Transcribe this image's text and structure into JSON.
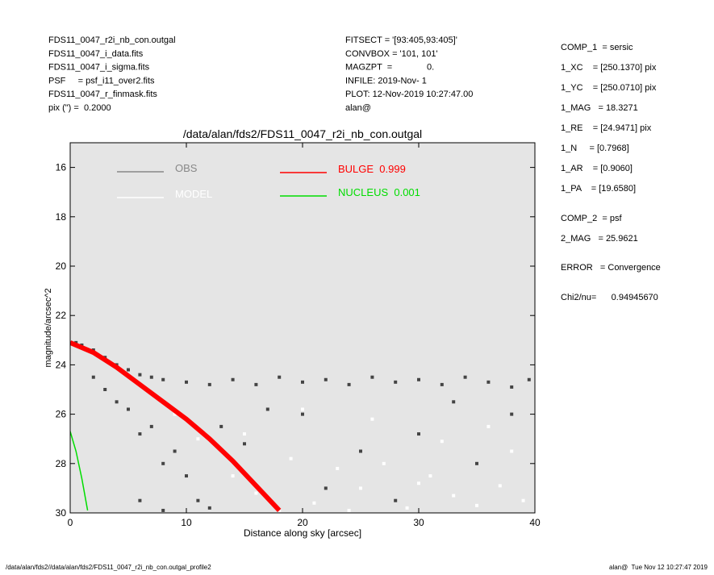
{
  "header_left": [
    "FDS11_0047_r2i_nb_con.outgal",
    "FDS11_0047_i_data.fits",
    "FDS11_0047_i_sigma.fits",
    "PSF     = psf_i11_over2.fits",
    "FDS11_0047_r_finmask.fits",
    "pix (\") =  0.2000"
  ],
  "header_middle": [
    "FITSECT = '[93:405,93:405]'",
    "CONVBOX = '101, 101'",
    "MAGZPT  =              0.",
    "INFILE: 2019-Nov- 1",
    "PLOT: 12-Nov-2019 10:27:47.00",
    "alan@"
  ],
  "fit_panel": [
    "COMP_1  = sersic",
    "1_XC    = [250.1370] pix",
    "1_YC    = [250.0710] pix",
    "1_MAG   = 18.3271",
    "1_RE    = [24.9471] pix",
    "1_N     = [0.7968]",
    "1_AR    = [0.9060]",
    "1_PA    = [19.6580]",
    "COMP_2  = psf",
    "2_MAG   = 25.9621",
    "ERROR   = Convergence",
    "Chi2/nu=      0.94945670"
  ],
  "footer_left": "/data/alan/fds2//data/alan/fds2/FDS11_0047_r2i_nb_con.outgal_profile2",
  "footer_right": "alan@  Tue Nov 12 10:27:47 2019",
  "chart_data": {
    "type": "scatter",
    "title": "/data/alan/fds2/FDS11_0047_r2i_nb_con.outgal",
    "x_label": "Distance along sky [arcsec]",
    "y_label": "magnitude/arcsec^2",
    "xlim": [
      0,
      40
    ],
    "xticks": [
      0,
      10,
      20,
      30,
      40
    ],
    "ylim": [
      30,
      15
    ],
    "yticks": [
      16,
      18,
      20,
      22,
      24,
      26,
      28,
      30
    ],
    "background": "#e5e5e5",
    "series": [
      {
        "name": "OBS",
        "color": "#444444",
        "legend_color": "#888888",
        "style": "points",
        "x": [
          0.5,
          1,
          2,
          3,
          4,
          5,
          6,
          7,
          8,
          10,
          12,
          14,
          16,
          18,
          20,
          22,
          24,
          26,
          28,
          30,
          32,
          34,
          36,
          38,
          39.5,
          3,
          5,
          7,
          9,
          10,
          11,
          2,
          4,
          6,
          8,
          13,
          15,
          20,
          25,
          30,
          35,
          38,
          12,
          6,
          8,
          22,
          33,
          28,
          17
        ],
        "values": [
          23.1,
          23.2,
          23.4,
          23.7,
          24.0,
          24.2,
          24.4,
          24.5,
          24.6,
          24.7,
          24.8,
          24.6,
          24.8,
          24.5,
          24.7,
          24.6,
          24.8,
          24.5,
          24.7,
          24.6,
          24.8,
          24.5,
          24.7,
          24.9,
          24.6,
          25.0,
          25.8,
          26.5,
          27.5,
          28.5,
          29.5,
          24.5,
          25.5,
          26.8,
          28.0,
          26.5,
          27.2,
          26.0,
          27.5,
          26.8,
          28.0,
          26.0,
          29.8,
          29.5,
          29.9,
          29.0,
          25.5,
          29.5,
          25.8
        ]
      },
      {
        "name": "MODEL",
        "color": "#ffffff",
        "legend_color": "#ffffff",
        "style": "points",
        "x": [
          9,
          11,
          14,
          16,
          19,
          21,
          23,
          25,
          27,
          29,
          31,
          33,
          35,
          37,
          39,
          15,
          20,
          26,
          32,
          36,
          24,
          30,
          38,
          18
        ],
        "values": [
          26.0,
          27.0,
          28.5,
          29.2,
          27.8,
          29.6,
          28.2,
          29.0,
          28.0,
          29.8,
          28.5,
          29.3,
          29.7,
          28.9,
          29.5,
          26.8,
          25.8,
          26.2,
          27.1,
          26.5,
          29.9,
          28.8,
          27.5,
          29.9
        ]
      },
      {
        "name": "BULGE  0.999",
        "color": "#ff0000",
        "style": "line",
        "x": [
          0,
          2,
          4,
          6,
          8,
          10,
          12,
          14,
          16,
          18
        ],
        "values": [
          23.1,
          23.5,
          24.1,
          24.8,
          25.5,
          26.2,
          27.0,
          27.9,
          28.9,
          29.9
        ]
      },
      {
        "name": "NUCLEUS  0.001",
        "color": "#00dd00",
        "style": "line",
        "x": [
          0,
          0.5,
          1,
          1.5
        ],
        "values": [
          26.7,
          27.5,
          28.6,
          29.9
        ]
      }
    ]
  }
}
